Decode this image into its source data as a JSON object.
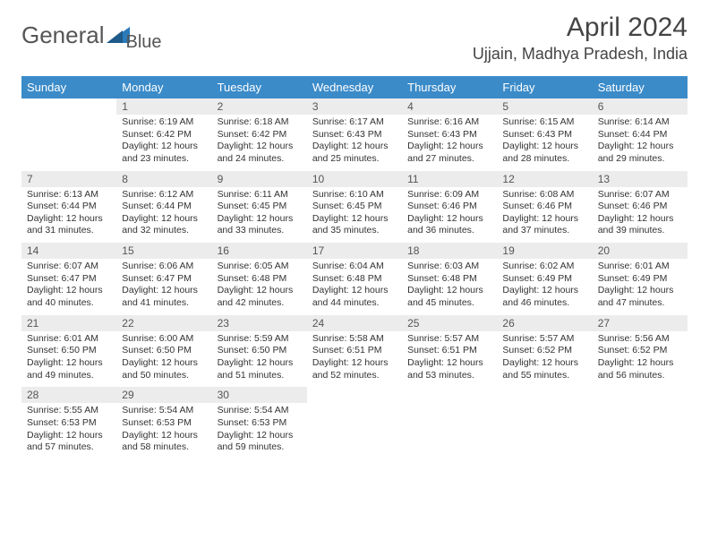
{
  "brand": {
    "name_part1": "General",
    "name_part2": "Blue"
  },
  "title": "April 2024",
  "location": "Ujjain, Madhya Pradesh, India",
  "colors": {
    "header_bg": "#3b8bc9",
    "header_text": "#ffffff",
    "week_divider": "#3b7aa8",
    "daynum_bg": "#ececec",
    "text": "#333333",
    "logo_accent": "#2b7bbb"
  },
  "weekdays": [
    "Sunday",
    "Monday",
    "Tuesday",
    "Wednesday",
    "Thursday",
    "Friday",
    "Saturday"
  ],
  "weeks": [
    [
      null,
      {
        "n": "1",
        "sunrise": "Sunrise: 6:19 AM",
        "sunset": "Sunset: 6:42 PM",
        "day1": "Daylight: 12 hours",
        "day2": "and 23 minutes."
      },
      {
        "n": "2",
        "sunrise": "Sunrise: 6:18 AM",
        "sunset": "Sunset: 6:42 PM",
        "day1": "Daylight: 12 hours",
        "day2": "and 24 minutes."
      },
      {
        "n": "3",
        "sunrise": "Sunrise: 6:17 AM",
        "sunset": "Sunset: 6:43 PM",
        "day1": "Daylight: 12 hours",
        "day2": "and 25 minutes."
      },
      {
        "n": "4",
        "sunrise": "Sunrise: 6:16 AM",
        "sunset": "Sunset: 6:43 PM",
        "day1": "Daylight: 12 hours",
        "day2": "and 27 minutes."
      },
      {
        "n": "5",
        "sunrise": "Sunrise: 6:15 AM",
        "sunset": "Sunset: 6:43 PM",
        "day1": "Daylight: 12 hours",
        "day2": "and 28 minutes."
      },
      {
        "n": "6",
        "sunrise": "Sunrise: 6:14 AM",
        "sunset": "Sunset: 6:44 PM",
        "day1": "Daylight: 12 hours",
        "day2": "and 29 minutes."
      }
    ],
    [
      {
        "n": "7",
        "sunrise": "Sunrise: 6:13 AM",
        "sunset": "Sunset: 6:44 PM",
        "day1": "Daylight: 12 hours",
        "day2": "and 31 minutes."
      },
      {
        "n": "8",
        "sunrise": "Sunrise: 6:12 AM",
        "sunset": "Sunset: 6:44 PM",
        "day1": "Daylight: 12 hours",
        "day2": "and 32 minutes."
      },
      {
        "n": "9",
        "sunrise": "Sunrise: 6:11 AM",
        "sunset": "Sunset: 6:45 PM",
        "day1": "Daylight: 12 hours",
        "day2": "and 33 minutes."
      },
      {
        "n": "10",
        "sunrise": "Sunrise: 6:10 AM",
        "sunset": "Sunset: 6:45 PM",
        "day1": "Daylight: 12 hours",
        "day2": "and 35 minutes."
      },
      {
        "n": "11",
        "sunrise": "Sunrise: 6:09 AM",
        "sunset": "Sunset: 6:46 PM",
        "day1": "Daylight: 12 hours",
        "day2": "and 36 minutes."
      },
      {
        "n": "12",
        "sunrise": "Sunrise: 6:08 AM",
        "sunset": "Sunset: 6:46 PM",
        "day1": "Daylight: 12 hours",
        "day2": "and 37 minutes."
      },
      {
        "n": "13",
        "sunrise": "Sunrise: 6:07 AM",
        "sunset": "Sunset: 6:46 PM",
        "day1": "Daylight: 12 hours",
        "day2": "and 39 minutes."
      }
    ],
    [
      {
        "n": "14",
        "sunrise": "Sunrise: 6:07 AM",
        "sunset": "Sunset: 6:47 PM",
        "day1": "Daylight: 12 hours",
        "day2": "and 40 minutes."
      },
      {
        "n": "15",
        "sunrise": "Sunrise: 6:06 AM",
        "sunset": "Sunset: 6:47 PM",
        "day1": "Daylight: 12 hours",
        "day2": "and 41 minutes."
      },
      {
        "n": "16",
        "sunrise": "Sunrise: 6:05 AM",
        "sunset": "Sunset: 6:48 PM",
        "day1": "Daylight: 12 hours",
        "day2": "and 42 minutes."
      },
      {
        "n": "17",
        "sunrise": "Sunrise: 6:04 AM",
        "sunset": "Sunset: 6:48 PM",
        "day1": "Daylight: 12 hours",
        "day2": "and 44 minutes."
      },
      {
        "n": "18",
        "sunrise": "Sunrise: 6:03 AM",
        "sunset": "Sunset: 6:48 PM",
        "day1": "Daylight: 12 hours",
        "day2": "and 45 minutes."
      },
      {
        "n": "19",
        "sunrise": "Sunrise: 6:02 AM",
        "sunset": "Sunset: 6:49 PM",
        "day1": "Daylight: 12 hours",
        "day2": "and 46 minutes."
      },
      {
        "n": "20",
        "sunrise": "Sunrise: 6:01 AM",
        "sunset": "Sunset: 6:49 PM",
        "day1": "Daylight: 12 hours",
        "day2": "and 47 minutes."
      }
    ],
    [
      {
        "n": "21",
        "sunrise": "Sunrise: 6:01 AM",
        "sunset": "Sunset: 6:50 PM",
        "day1": "Daylight: 12 hours",
        "day2": "and 49 minutes."
      },
      {
        "n": "22",
        "sunrise": "Sunrise: 6:00 AM",
        "sunset": "Sunset: 6:50 PM",
        "day1": "Daylight: 12 hours",
        "day2": "and 50 minutes."
      },
      {
        "n": "23",
        "sunrise": "Sunrise: 5:59 AM",
        "sunset": "Sunset: 6:50 PM",
        "day1": "Daylight: 12 hours",
        "day2": "and 51 minutes."
      },
      {
        "n": "24",
        "sunrise": "Sunrise: 5:58 AM",
        "sunset": "Sunset: 6:51 PM",
        "day1": "Daylight: 12 hours",
        "day2": "and 52 minutes."
      },
      {
        "n": "25",
        "sunrise": "Sunrise: 5:57 AM",
        "sunset": "Sunset: 6:51 PM",
        "day1": "Daylight: 12 hours",
        "day2": "and 53 minutes."
      },
      {
        "n": "26",
        "sunrise": "Sunrise: 5:57 AM",
        "sunset": "Sunset: 6:52 PM",
        "day1": "Daylight: 12 hours",
        "day2": "and 55 minutes."
      },
      {
        "n": "27",
        "sunrise": "Sunrise: 5:56 AM",
        "sunset": "Sunset: 6:52 PM",
        "day1": "Daylight: 12 hours",
        "day2": "and 56 minutes."
      }
    ],
    [
      {
        "n": "28",
        "sunrise": "Sunrise: 5:55 AM",
        "sunset": "Sunset: 6:53 PM",
        "day1": "Daylight: 12 hours",
        "day2": "and 57 minutes."
      },
      {
        "n": "29",
        "sunrise": "Sunrise: 5:54 AM",
        "sunset": "Sunset: 6:53 PM",
        "day1": "Daylight: 12 hours",
        "day2": "and 58 minutes."
      },
      {
        "n": "30",
        "sunrise": "Sunrise: 5:54 AM",
        "sunset": "Sunset: 6:53 PM",
        "day1": "Daylight: 12 hours",
        "day2": "and 59 minutes."
      },
      null,
      null,
      null,
      null
    ]
  ]
}
